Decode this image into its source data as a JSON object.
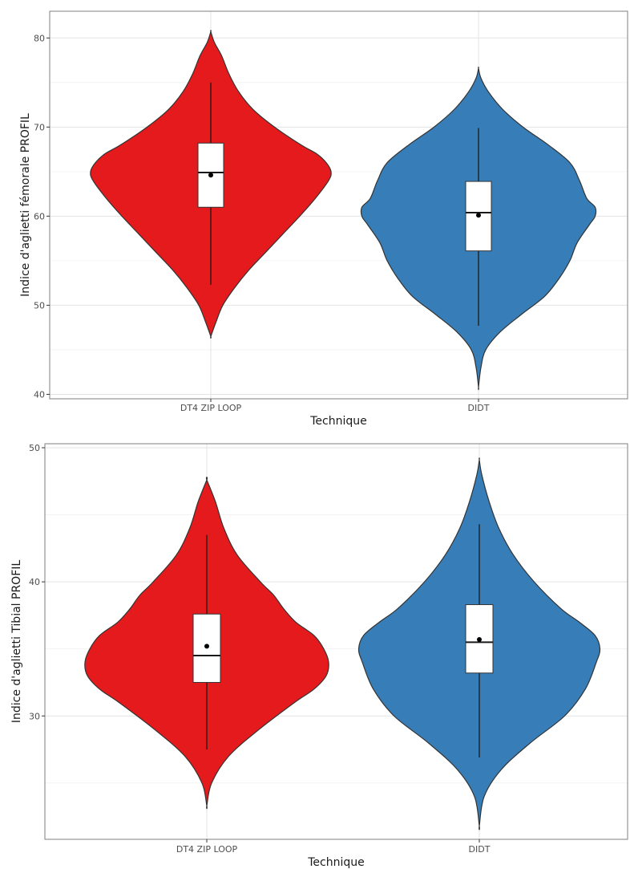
{
  "chart_data": [
    {
      "type": "violin",
      "xlabel": "Technique",
      "ylabel": "Indice d'aglietti fémorale PROFIL",
      "categories": [
        "DT4 ZIP LOOP",
        "DIDT"
      ],
      "ylim": [
        39.5,
        83
      ],
      "yticks": [
        40,
        50,
        60,
        70,
        80
      ],
      "grid": true,
      "legend": "none",
      "colors": [
        "#e41a1c",
        "#377eb8"
      ],
      "groups": [
        {
          "name": "DT4 ZIP LOOP",
          "whisker_low": 52.3,
          "q1": 61.0,
          "median": 64.9,
          "q3": 68.2,
          "whisker_high": 75.0,
          "mean": 64.6,
          "density": [
            [
              46.5,
              0.0
            ],
            [
              48,
              0.04
            ],
            [
              50,
              0.1
            ],
            [
              52,
              0.2
            ],
            [
              54,
              0.32
            ],
            [
              56,
              0.46
            ],
            [
              58,
              0.6
            ],
            [
              60,
              0.74
            ],
            [
              62,
              0.87
            ],
            [
              64,
              0.98
            ],
            [
              65,
              1.0
            ],
            [
              66,
              0.96
            ],
            [
              67,
              0.88
            ],
            [
              68,
              0.75
            ],
            [
              70,
              0.53
            ],
            [
              72,
              0.35
            ],
            [
              74,
              0.23
            ],
            [
              76,
              0.15
            ],
            [
              78,
              0.09
            ],
            [
              79.5,
              0.03
            ],
            [
              80.7,
              0.0
            ]
          ]
        },
        {
          "name": "DIDT",
          "whisker_low": 47.7,
          "q1": 56.1,
          "median": 60.4,
          "q3": 63.9,
          "whisker_high": 69.9,
          "mean": 60.1,
          "density": [
            [
              40.8,
              0.0
            ],
            [
              43,
              0.02
            ],
            [
              45,
              0.06
            ],
            [
              47,
              0.18
            ],
            [
              49,
              0.36
            ],
            [
              51,
              0.55
            ],
            [
              53,
              0.67
            ],
            [
              55,
              0.76
            ],
            [
              57,
              0.82
            ],
            [
              59,
              0.92
            ],
            [
              60,
              0.97
            ],
            [
              61,
              0.97
            ],
            [
              62,
              0.9
            ],
            [
              64,
              0.84
            ],
            [
              66,
              0.76
            ],
            [
              68,
              0.58
            ],
            [
              70,
              0.37
            ],
            [
              72,
              0.2
            ],
            [
              74,
              0.08
            ],
            [
              75.5,
              0.02
            ],
            [
              76.6,
              0.0
            ]
          ]
        }
      ]
    },
    {
      "type": "violin",
      "xlabel": "Technique",
      "ylabel": "Indice d'aglietti Tibial PROFIL",
      "categories": [
        "DT4 ZIP LOOP",
        "DIDT"
      ],
      "ylim": [
        20.8,
        50.3
      ],
      "yticks": [
        30,
        40,
        50
      ],
      "grid": true,
      "legend": "none",
      "colors": [
        "#e41a1c",
        "#377eb8"
      ],
      "groups": [
        {
          "name": "DT4 ZIP LOOP",
          "whisker_low": 27.5,
          "q1": 32.5,
          "median": 34.5,
          "q3": 37.6,
          "whisker_high": 43.5,
          "mean": 35.2,
          "density": [
            [
              23.3,
              0.0
            ],
            [
              25,
              0.04
            ],
            [
              27,
              0.18
            ],
            [
              29,
              0.43
            ],
            [
              31,
              0.72
            ],
            [
              32,
              0.88
            ],
            [
              33,
              0.98
            ],
            [
              34,
              1.0
            ],
            [
              35,
              0.96
            ],
            [
              36,
              0.88
            ],
            [
              37,
              0.73
            ],
            [
              38,
              0.63
            ],
            [
              39,
              0.55
            ],
            [
              40,
              0.44
            ],
            [
              42,
              0.25
            ],
            [
              44,
              0.14
            ],
            [
              46,
              0.07
            ],
            [
              47.6,
              0.0
            ]
          ]
        },
        {
          "name": "DIDT",
          "whisker_low": 26.9,
          "q1": 33.2,
          "median": 35.5,
          "q3": 38.3,
          "whisker_high": 44.3,
          "mean": 35.7,
          "density": [
            [
              21.8,
              0.0
            ],
            [
              24,
              0.04
            ],
            [
              26,
              0.18
            ],
            [
              28,
              0.42
            ],
            [
              30,
              0.7
            ],
            [
              32,
              0.87
            ],
            [
              34,
              0.96
            ],
            [
              35,
              0.99
            ],
            [
              36,
              0.95
            ],
            [
              37,
              0.82
            ],
            [
              38,
              0.67
            ],
            [
              40,
              0.45
            ],
            [
              42,
              0.28
            ],
            [
              44,
              0.16
            ],
            [
              46,
              0.08
            ],
            [
              48,
              0.02
            ],
            [
              49.1,
              0.0
            ]
          ]
        }
      ]
    }
  ]
}
